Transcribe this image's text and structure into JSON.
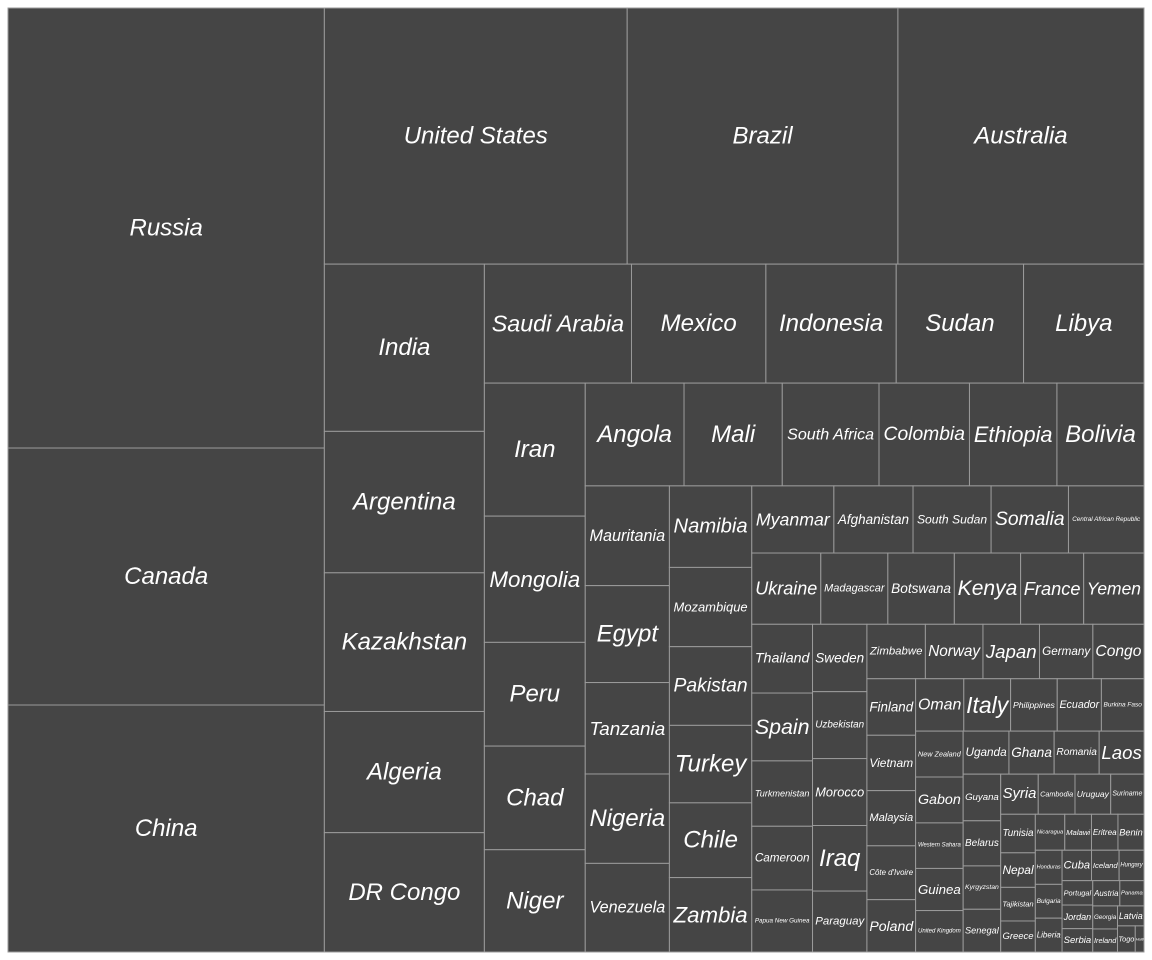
{
  "chart_data": {
    "type": "treemap",
    "colors": {
      "tile": "#454545",
      "border": "#9a9a9a",
      "label": "#ffffff",
      "background": "#ffffff"
    },
    "items": [
      {
        "name": "Russia",
        "value": 17098
      },
      {
        "name": "Canada",
        "value": 9985
      },
      {
        "name": "China",
        "value": 9597
      },
      {
        "name": "United States",
        "value": 9526
      },
      {
        "name": "Brazil",
        "value": 8516
      },
      {
        "name": "Australia",
        "value": 7741
      },
      {
        "name": "India",
        "value": 3287
      },
      {
        "name": "Argentina",
        "value": 2780
      },
      {
        "name": "Kazakhstan",
        "value": 2725
      },
      {
        "name": "Algeria",
        "value": 2382
      },
      {
        "name": "DR Congo",
        "value": 2345
      },
      {
        "name": "Saudi Arabia",
        "value": 2150
      },
      {
        "name": "Mexico",
        "value": 1964
      },
      {
        "name": "Indonesia",
        "value": 1905
      },
      {
        "name": "Sudan",
        "value": 1861
      },
      {
        "name": "Libya",
        "value": 1760
      },
      {
        "name": "Iran",
        "value": 1648
      },
      {
        "name": "Mongolia",
        "value": 1564
      },
      {
        "name": "Peru",
        "value": 1285
      },
      {
        "name": "Chad",
        "value": 1284
      },
      {
        "name": "Niger",
        "value": 1267
      },
      {
        "name": "Angola",
        "value": 1247
      },
      {
        "name": "Mali",
        "value": 1240
      },
      {
        "name": "South Africa",
        "value": 1221
      },
      {
        "name": "Colombia",
        "value": 1142
      },
      {
        "name": "Ethiopia",
        "value": 1104
      },
      {
        "name": "Bolivia",
        "value": 1099
      },
      {
        "name": "Mauritania",
        "value": 1031
      },
      {
        "name": "Egypt",
        "value": 1002
      },
      {
        "name": "Tanzania",
        "value": 945
      },
      {
        "name": "Nigeria",
        "value": 924
      },
      {
        "name": "Venezuela",
        "value": 916
      },
      {
        "name": "Namibia",
        "value": 825
      },
      {
        "name": "Mozambique",
        "value": 802
      },
      {
        "name": "Pakistan",
        "value": 796
      },
      {
        "name": "Turkey",
        "value": 784
      },
      {
        "name": "Chile",
        "value": 756
      },
      {
        "name": "Zambia",
        "value": 753
      },
      {
        "name": "Myanmar",
        "value": 677
      },
      {
        "name": "Afghanistan",
        "value": 653
      },
      {
        "name": "South Sudan",
        "value": 644
      },
      {
        "name": "Somalia",
        "value": 638
      },
      {
        "name": "Central African Republic",
        "value": 623
      },
      {
        "name": "Ukraine",
        "value": 604
      },
      {
        "name": "Madagascar",
        "value": 587
      },
      {
        "name": "Botswana",
        "value": 582
      },
      {
        "name": "Kenya",
        "value": 580
      },
      {
        "name": "France",
        "value": 552
      },
      {
        "name": "Yemen",
        "value": 528
      },
      {
        "name": "Thailand",
        "value": 513
      },
      {
        "name": "Spain",
        "value": 506
      },
      {
        "name": "Turkmenistan",
        "value": 488
      },
      {
        "name": "Cameroon",
        "value": 475
      },
      {
        "name": "Papua New Guinea",
        "value": 463
      },
      {
        "name": "Sweden",
        "value": 450
      },
      {
        "name": "Uzbekistan",
        "value": 447
      },
      {
        "name": "Morocco",
        "value": 447
      },
      {
        "name": "Iraq",
        "value": 438
      },
      {
        "name": "Paraguay",
        "value": 407
      },
      {
        "name": "Zimbabwe",
        "value": 391
      },
      {
        "name": "Norway",
        "value": 385
      },
      {
        "name": "Japan",
        "value": 378
      },
      {
        "name": "Germany",
        "value": 357
      },
      {
        "name": "Congo",
        "value": 342
      },
      {
        "name": "Finland",
        "value": 338
      },
      {
        "name": "Malaysia",
        "value": 330
      },
      {
        "name": "Vietnam",
        "value": 331
      },
      {
        "name": "Côte d'Ivoire",
        "value": 322
      },
      {
        "name": "Poland",
        "value": 313
      },
      {
        "name": "Oman",
        "value": 310
      },
      {
        "name": "Italy",
        "value": 301
      },
      {
        "name": "Philippines",
        "value": 300
      },
      {
        "name": "Ecuador",
        "value": 284
      },
      {
        "name": "Burkina Faso",
        "value": 274
      },
      {
        "name": "New Zealand",
        "value": 268
      },
      {
        "name": "Gabon",
        "value": 268
      },
      {
        "name": "Western Sahara",
        "value": 266
      },
      {
        "name": "Guinea",
        "value": 246
      },
      {
        "name": "United Kingdom",
        "value": 242
      },
      {
        "name": "Uganda",
        "value": 242
      },
      {
        "name": "Ghana",
        "value": 239
      },
      {
        "name": "Romania",
        "value": 238
      },
      {
        "name": "Laos",
        "value": 237
      },
      {
        "name": "Guyana",
        "value": 215
      },
      {
        "name": "Belarus",
        "value": 208
      },
      {
        "name": "Kyrgyzstan",
        "value": 200
      },
      {
        "name": "Senegal",
        "value": 197
      },
      {
        "name": "Syria",
        "value": 185
      },
      {
        "name": "Cambodia",
        "value": 181
      },
      {
        "name": "Uruguay",
        "value": 176
      },
      {
        "name": "Suriname",
        "value": 164
      },
      {
        "name": "Tunisia",
        "value": 164
      },
      {
        "name": "Nepal",
        "value": 147
      },
      {
        "name": "Tajikistan",
        "value": 143
      },
      {
        "name": "Greece",
        "value": 132
      },
      {
        "name": "Nicaragua",
        "value": 130
      },
      {
        "name": "Cuba",
        "value": 110
      },
      {
        "name": "Portugal",
        "value": 92
      },
      {
        "name": "Hungary",
        "value": 93
      },
      {
        "name": "Jordan",
        "value": 89
      },
      {
        "name": "Serbia",
        "value": 88
      },
      {
        "name": "Bulgaria",
        "value": 111
      },
      {
        "name": "Honduras",
        "value": 112
      },
      {
        "name": "Benin",
        "value": 115
      },
      {
        "name": "Eritrea",
        "value": 117
      },
      {
        "name": "Malawi",
        "value": 118
      },
      {
        "name": "Liberia",
        "value": 111
      },
      {
        "name": "Iceland",
        "value": 103
      },
      {
        "name": "Austria",
        "value": 84
      },
      {
        "name": "Panama",
        "value": 75
      },
      {
        "name": "Latvia",
        "value": 65
      },
      {
        "name": "Georgia",
        "value": 70
      },
      {
        "name": "Ireland",
        "value": 70
      },
      {
        "name": "Togo",
        "value": 57
      },
      {
        "name": "Haiti",
        "value": 28
      }
    ]
  }
}
